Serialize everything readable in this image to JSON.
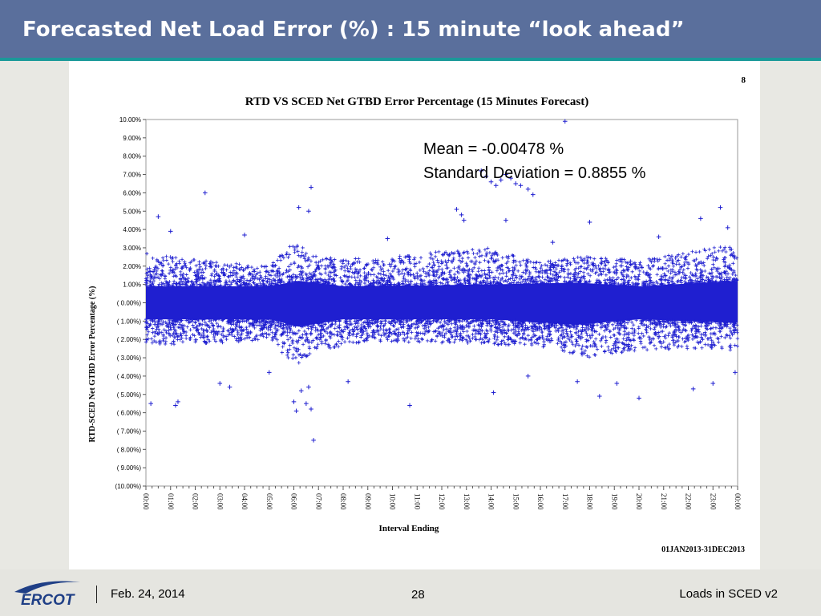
{
  "slide": {
    "title": "Forecasted Net Load Error (%) : 15 minute “look ahead”",
    "footer_date": "Feb. 24, 2014",
    "footer_page": "28",
    "footer_title": "Loads in SCED v2",
    "logo_text": "ERCOT"
  },
  "chart_data": {
    "type": "scatter",
    "page_number": "8",
    "title": "RTD VS SCED Net GTBD Error Percentage (15 Minutes Forecast)",
    "xlabel": "Interval Ending",
    "ylabel": "RTD-SCED Net GTBD Error Percentage (%)",
    "date_range": "01JAN2013-31DEC2013",
    "stats": {
      "mean_text": "Mean = -0.00478 %",
      "std_text": "Standard Deviation = 0.8855 %",
      "mean": -0.00478,
      "std": 0.8855
    },
    "marker": "+",
    "series_color": "#1f1fd0",
    "ylim": [
      -10,
      10
    ],
    "xlim": [
      0,
      24
    ],
    "x_ticks": [
      "00:00",
      "01:00",
      "02:00",
      "03:00",
      "04:00",
      "05:00",
      "06:00",
      "07:00",
      "08:00",
      "09:00",
      "10:00",
      "11:00",
      "12:00",
      "13:00",
      "14:00",
      "15:00",
      "16:00",
      "17:00",
      "18:00",
      "19:00",
      "20:00",
      "21:00",
      "22:00",
      "23:00",
      "00:00"
    ],
    "y_ticks": [
      {
        "v": 10,
        "label": "10.00%"
      },
      {
        "v": 9,
        "label": "9.00%"
      },
      {
        "v": 8,
        "label": "8.00%"
      },
      {
        "v": 7,
        "label": "7.00%"
      },
      {
        "v": 6,
        "label": "6.00%"
      },
      {
        "v": 5,
        "label": "5.00%"
      },
      {
        "v": 4,
        "label": "4.00%"
      },
      {
        "v": 3,
        "label": "3.00%"
      },
      {
        "v": 2,
        "label": "2.00%"
      },
      {
        "v": 1,
        "label": "1.00%"
      },
      {
        "v": 0,
        "label": "( 0.00%)"
      },
      {
        "v": -1,
        "label": "( 1.00%)"
      },
      {
        "v": -2,
        "label": "( 2.00%)"
      },
      {
        "v": -3,
        "label": "( 3.00%)"
      },
      {
        "v": -4,
        "label": "( 4.00%)"
      },
      {
        "v": -5,
        "label": "( 5.00%)"
      },
      {
        "v": -6,
        "label": "( 6.00%)"
      },
      {
        "v": -7,
        "label": "( 7.00%)"
      },
      {
        "v": -8,
        "label": "( 8.00%)"
      },
      {
        "v": -9,
        "label": "( 9.00%)"
      },
      {
        "v": -10,
        "label": "(10.00%)"
      }
    ],
    "band_core": [
      {
        "x": 0,
        "lo": -0.9,
        "hi": 0.9
      },
      {
        "x": 5,
        "lo": -0.9,
        "hi": 0.9
      },
      {
        "x": 6.2,
        "lo": -1.3,
        "hi": 1.2
      },
      {
        "x": 8,
        "lo": -0.9,
        "hi": 0.9
      },
      {
        "x": 14,
        "lo": -0.9,
        "hi": 1.0
      },
      {
        "x": 17.5,
        "lo": -1.2,
        "hi": 1.1
      },
      {
        "x": 20,
        "lo": -0.9,
        "hi": 0.9
      },
      {
        "x": 24,
        "lo": -1.1,
        "hi": 1.2
      }
    ],
    "band_outer": [
      {
        "x": 0,
        "lo": -2.3,
        "hi": 2.7
      },
      {
        "x": 3,
        "lo": -2.2,
        "hi": 2.2
      },
      {
        "x": 5,
        "lo": -2.0,
        "hi": 2.0
      },
      {
        "x": 6,
        "lo": -3.5,
        "hi": 3.3
      },
      {
        "x": 7,
        "lo": -2.6,
        "hi": 2.5
      },
      {
        "x": 9,
        "lo": -2.1,
        "hi": 2.4
      },
      {
        "x": 12,
        "lo": -2.2,
        "hi": 2.8
      },
      {
        "x": 14,
        "lo": -2.3,
        "hi": 3.0
      },
      {
        "x": 16,
        "lo": -2.4,
        "hi": 2.2
      },
      {
        "x": 18,
        "lo": -3.0,
        "hi": 2.6
      },
      {
        "x": 20,
        "lo": -2.6,
        "hi": 2.3
      },
      {
        "x": 22,
        "lo": -2.5,
        "hi": 2.8
      },
      {
        "x": 24,
        "lo": -2.6,
        "hi": 3.2
      }
    ],
    "outliers": [
      {
        "x": 17.0,
        "y": 9.9
      },
      {
        "x": 2.4,
        "y": 6.0
      },
      {
        "x": 6.7,
        "y": 6.3
      },
      {
        "x": 6.2,
        "y": 5.2
      },
      {
        "x": 6.6,
        "y": 5.0
      },
      {
        "x": 0.5,
        "y": 4.7
      },
      {
        "x": 1.0,
        "y": 3.9
      },
      {
        "x": 4.0,
        "y": 3.7
      },
      {
        "x": 12.6,
        "y": 5.1
      },
      {
        "x": 12.8,
        "y": 4.8
      },
      {
        "x": 12.9,
        "y": 4.5
      },
      {
        "x": 13.6,
        "y": 7.2
      },
      {
        "x": 13.8,
        "y": 6.9
      },
      {
        "x": 14.0,
        "y": 6.6
      },
      {
        "x": 14.2,
        "y": 6.4
      },
      {
        "x": 14.4,
        "y": 6.7
      },
      {
        "x": 14.6,
        "y": 7.0
      },
      {
        "x": 14.8,
        "y": 6.8
      },
      {
        "x": 15.0,
        "y": 6.5
      },
      {
        "x": 15.2,
        "y": 6.4
      },
      {
        "x": 15.5,
        "y": 6.2
      },
      {
        "x": 15.7,
        "y": 5.9
      },
      {
        "x": 14.6,
        "y": 4.5
      },
      {
        "x": 18.0,
        "y": 4.4
      },
      {
        "x": 22.5,
        "y": 4.6
      },
      {
        "x": 23.3,
        "y": 5.2
      },
      {
        "x": 23.6,
        "y": 4.1
      },
      {
        "x": 9.8,
        "y": 3.5
      },
      {
        "x": 16.5,
        "y": 3.3
      },
      {
        "x": 20.8,
        "y": 3.6
      },
      {
        "x": 0.2,
        "y": -5.5
      },
      {
        "x": 1.2,
        "y": -5.6
      },
      {
        "x": 1.3,
        "y": -5.4
      },
      {
        "x": 3.0,
        "y": -4.4
      },
      {
        "x": 3.4,
        "y": -4.6
      },
      {
        "x": 6.0,
        "y": -5.4
      },
      {
        "x": 6.1,
        "y": -5.9
      },
      {
        "x": 6.5,
        "y": -5.5
      },
      {
        "x": 6.7,
        "y": -5.8
      },
      {
        "x": 6.8,
        "y": -7.5
      },
      {
        "x": 6.3,
        "y": -4.8
      },
      {
        "x": 6.6,
        "y": -4.6
      },
      {
        "x": 8.2,
        "y": -4.3
      },
      {
        "x": 10.7,
        "y": -5.6
      },
      {
        "x": 14.1,
        "y": -4.9
      },
      {
        "x": 17.5,
        "y": -4.3
      },
      {
        "x": 18.4,
        "y": -5.1
      },
      {
        "x": 19.1,
        "y": -4.4
      },
      {
        "x": 20.0,
        "y": -5.2
      },
      {
        "x": 22.2,
        "y": -4.7
      },
      {
        "x": 23.0,
        "y": -4.4
      },
      {
        "x": 23.9,
        "y": -3.8
      },
      {
        "x": 5.0,
        "y": -3.8
      },
      {
        "x": 15.5,
        "y": -4.0
      }
    ]
  }
}
